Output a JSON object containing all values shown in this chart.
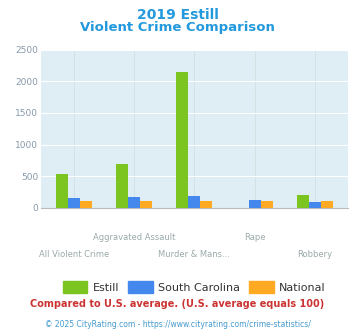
{
  "title_line1": "2019 Estill",
  "title_line2": "Violent Crime Comparison",
  "categories": [
    "All Violent Crime",
    "Aggravated Assault",
    "Murder & Mans...",
    "Rape",
    "Robbery"
  ],
  "row1_labels": [
    "",
    "Aggravated Assault",
    "",
    "Rape",
    ""
  ],
  "row2_labels": [
    "All Violent Crime",
    "",
    "Murder & Mans...",
    "",
    "Robbery"
  ],
  "series": {
    "Estill": [
      540,
      700,
      2150,
      0,
      210
    ],
    "South Carolina": [
      150,
      170,
      190,
      120,
      90
    ],
    "National": [
      110,
      110,
      115,
      110,
      115
    ]
  },
  "colors": {
    "Estill": "#7cc520",
    "South Carolina": "#4488ee",
    "National": "#ffaa22"
  },
  "ylim": [
    0,
    2500
  ],
  "yticks": [
    0,
    500,
    1000,
    1500,
    2000,
    2500
  ],
  "bg_color": "#deeef4",
  "title_color": "#2299dd",
  "tick_color": "#8899aa",
  "xlabel_color": "#9aaaaa",
  "footnote1": "Compared to U.S. average. (U.S. average equals 100)",
  "footnote2": "© 2025 CityRating.com - https://www.cityrating.com/crime-statistics/",
  "footnote1_color": "#cc3333",
  "footnote2_color": "#4499cc",
  "legend_text_color": "#333333"
}
